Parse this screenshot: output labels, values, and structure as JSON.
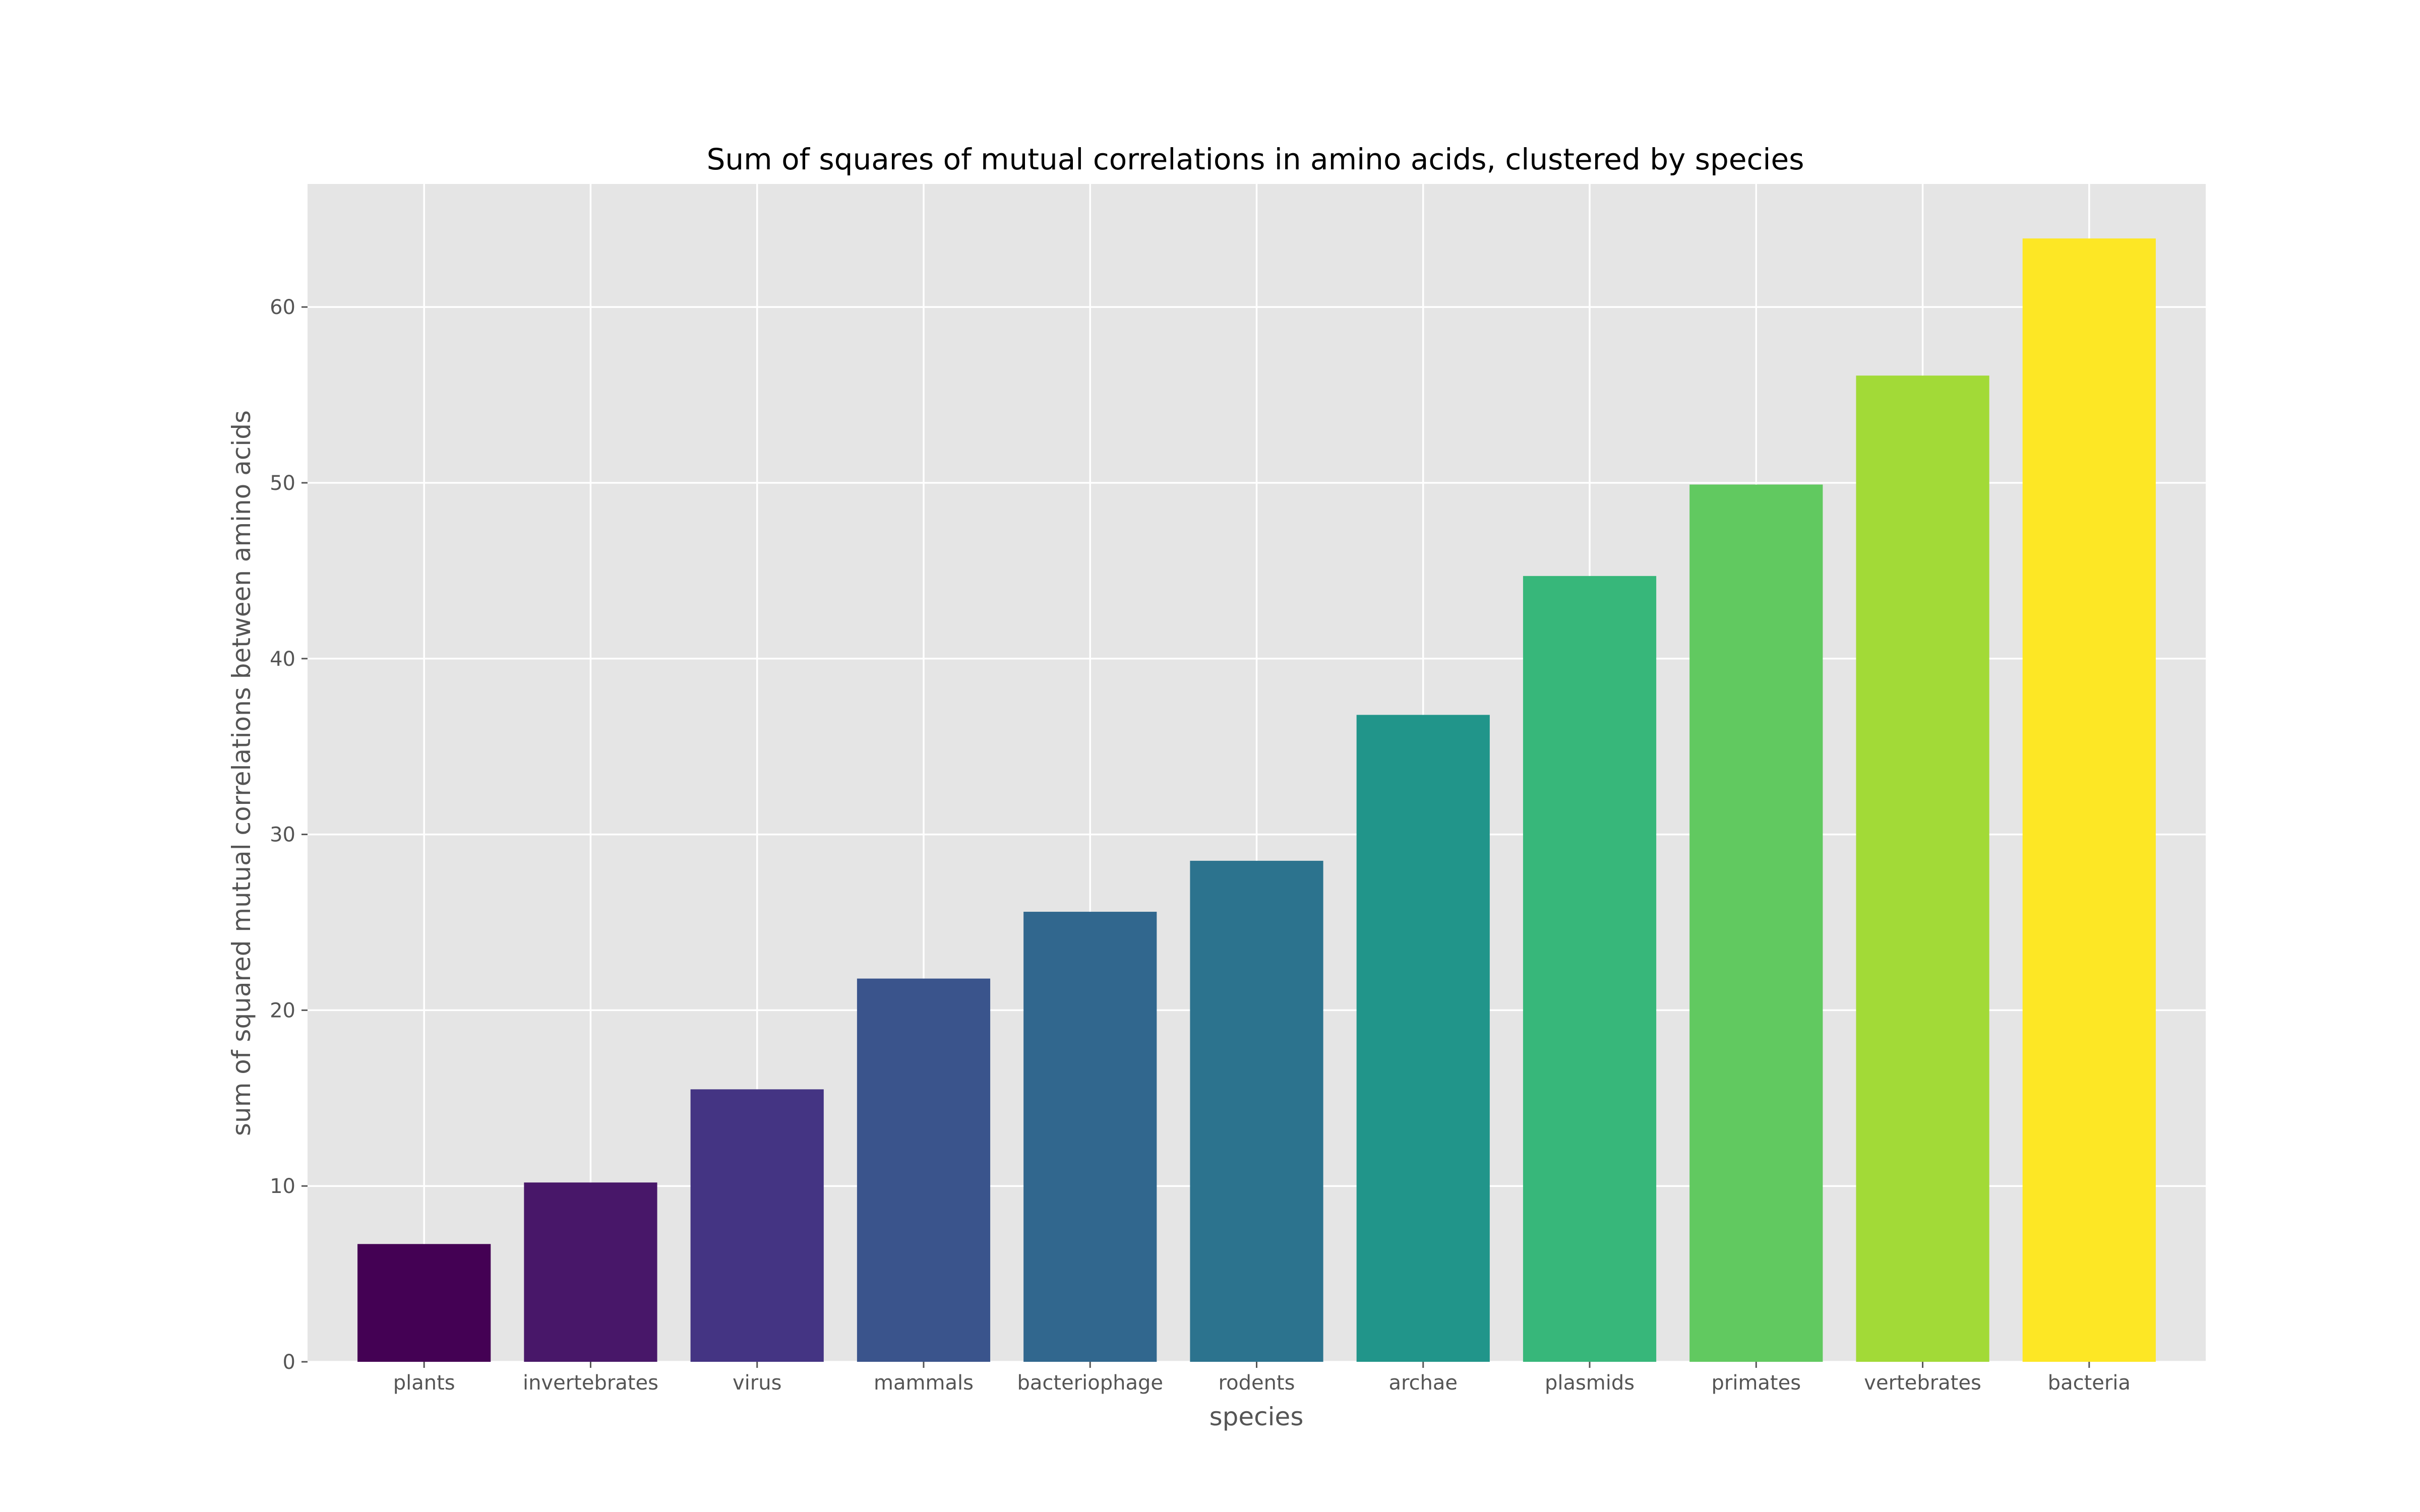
{
  "chart_data": {
    "type": "bar",
    "title": "Sum of squares of mutual correlations in amino acids, clustered by species",
    "xlabel": "species",
    "ylabel": "sum of squared mutual correlations between amino acids",
    "categories": [
      "plants",
      "invertebrates",
      "virus",
      "mammals",
      "bacteriophage",
      "rodents",
      "archae",
      "plasmids",
      "primates",
      "vertebrates",
      "bacteria"
    ],
    "values": [
      6.7,
      10.2,
      15.5,
      21.8,
      25.6,
      28.5,
      36.8,
      44.7,
      49.9,
      56.1,
      63.9
    ],
    "colors": [
      "#440154",
      "#481769",
      "#443483",
      "#3a548c",
      "#31678e",
      "#2c738e",
      "#21958a",
      "#37b77a",
      "#61c960",
      "#a2da37",
      "#fde725"
    ],
    "ylim": [
      0,
      67
    ],
    "yticks": [
      0,
      10,
      20,
      30,
      40,
      50,
      60
    ],
    "grid": true,
    "background": "#e5e5e5",
    "legend": "none"
  }
}
